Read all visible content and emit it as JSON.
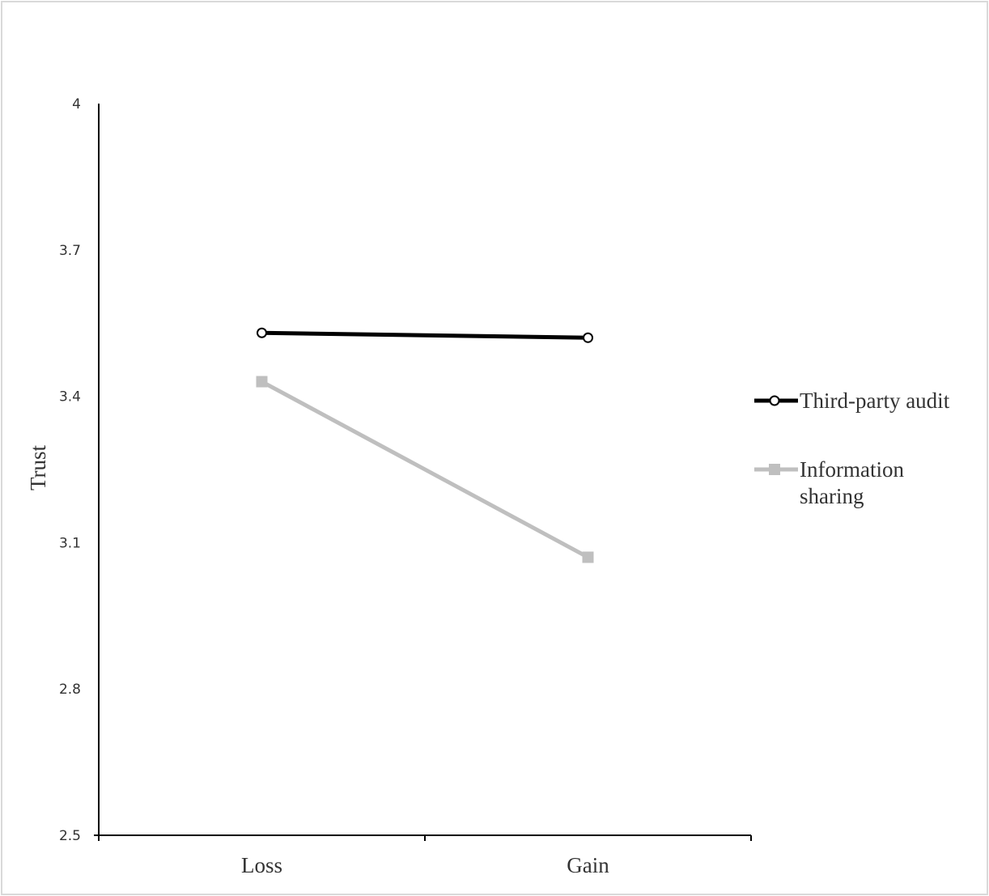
{
  "chart_data": {
    "type": "line",
    "title": "",
    "xlabel": "",
    "ylabel": "Trust",
    "categories": [
      "Loss",
      "Gain"
    ],
    "ylim": [
      2.5,
      4
    ],
    "yticks": [
      "2.5",
      "2.8",
      "3.1",
      "3.4",
      "3.7",
      "4"
    ],
    "grid": false,
    "legend_position": "right",
    "series": [
      {
        "name": "Third-party audit",
        "values": [
          3.53,
          3.52
        ],
        "color": "#000000",
        "marker": "circle"
      },
      {
        "name": "Information sharing",
        "legend_lines": [
          "Information",
          "sharing"
        ],
        "values": [
          3.43,
          3.07
        ],
        "color": "#bfbfbf",
        "marker": "square"
      }
    ]
  }
}
